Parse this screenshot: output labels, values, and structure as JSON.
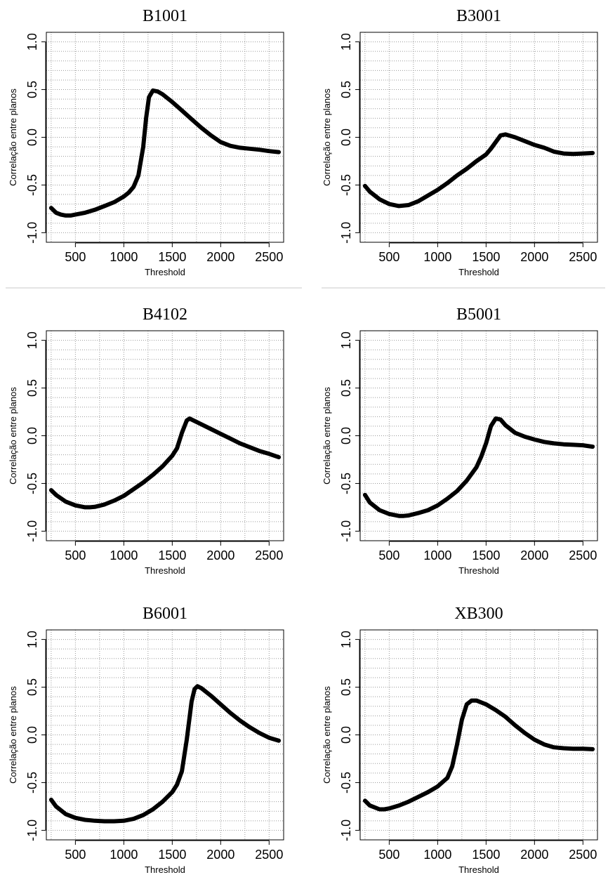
{
  "chart_data": [
    {
      "type": "line",
      "title": "B1001",
      "xlabel": "Threshold",
      "ylabel": "Correlação entre planos",
      "xlim": [
        200,
        2650
      ],
      "ylim": [
        -1.1,
        1.1
      ],
      "xticks": [
        "500",
        "1000",
        "1500",
        "2000",
        "2500"
      ],
      "yticks": [
        "-1.0",
        "-0.5",
        "0.0",
        "0.5",
        "1.0"
      ],
      "grid": true,
      "series": [
        {
          "x": [
            250,
            300,
            350,
            400,
            450,
            500,
            600,
            700,
            800,
            900,
            1000,
            1050,
            1100,
            1150,
            1200,
            1230,
            1260,
            1300,
            1350,
            1400,
            1500,
            1600,
            1700,
            1800,
            1900,
            2000,
            2100,
            2200,
            2300,
            2400,
            2500,
            2600
          ],
          "y": [
            -0.74,
            -0.79,
            -0.81,
            -0.82,
            -0.82,
            -0.81,
            -0.79,
            -0.76,
            -0.72,
            -0.68,
            -0.62,
            -0.58,
            -0.52,
            -0.4,
            -0.1,
            0.2,
            0.42,
            0.49,
            0.48,
            0.45,
            0.37,
            0.28,
            0.19,
            0.1,
            0.02,
            -0.05,
            -0.09,
            -0.11,
            -0.12,
            -0.13,
            -0.145,
            -0.155
          ]
        }
      ]
    },
    {
      "type": "line",
      "title": "B3001",
      "xlabel": "Threshold",
      "ylabel": "Correlação entre planos",
      "xlim": [
        200,
        2650
      ],
      "ylim": [
        -1.1,
        1.1
      ],
      "xticks": [
        "500",
        "1000",
        "1500",
        "2000",
        "2500"
      ],
      "yticks": [
        "-1.0",
        "-0.5",
        "0.0",
        "0.5",
        "1.0"
      ],
      "grid": true,
      "series": [
        {
          "x": [
            250,
            300,
            400,
            500,
            600,
            700,
            800,
            900,
            1000,
            1100,
            1200,
            1300,
            1400,
            1500,
            1550,
            1600,
            1650,
            1700,
            1800,
            1900,
            2000,
            2100,
            2200,
            2300,
            2400,
            2500,
            2600
          ],
          "y": [
            -0.51,
            -0.57,
            -0.65,
            -0.7,
            -0.72,
            -0.71,
            -0.67,
            -0.61,
            -0.55,
            -0.48,
            -0.4,
            -0.33,
            -0.25,
            -0.18,
            -0.12,
            -0.05,
            0.02,
            0.03,
            0.0,
            -0.04,
            -0.08,
            -0.11,
            -0.15,
            -0.17,
            -0.175,
            -0.17,
            -0.165
          ]
        }
      ]
    },
    {
      "type": "line",
      "title": "B4102",
      "xlabel": "Threshold",
      "ylabel": "Correlação entre planos",
      "xlim": [
        200,
        2650
      ],
      "ylim": [
        -1.1,
        1.1
      ],
      "xticks": [
        "500",
        "1000",
        "1500",
        "2000",
        "2500"
      ],
      "yticks": [
        "-1.0",
        "-0.5",
        "0.0",
        "0.5",
        "1.0"
      ],
      "grid": true,
      "series": [
        {
          "x": [
            250,
            300,
            400,
            500,
            600,
            650,
            700,
            800,
            900,
            1000,
            1100,
            1200,
            1300,
            1400,
            1500,
            1550,
            1600,
            1650,
            1680,
            1700,
            1800,
            1900,
            2000,
            2100,
            2200,
            2300,
            2400,
            2500,
            2600
          ],
          "y": [
            -0.57,
            -0.62,
            -0.69,
            -0.73,
            -0.75,
            -0.75,
            -0.745,
            -0.72,
            -0.68,
            -0.63,
            -0.56,
            -0.49,
            -0.41,
            -0.32,
            -0.21,
            -0.13,
            0.03,
            0.16,
            0.18,
            0.17,
            0.12,
            0.07,
            0.02,
            -0.03,
            -0.08,
            -0.12,
            -0.16,
            -0.19,
            -0.225
          ]
        }
      ]
    },
    {
      "type": "line",
      "title": "B5001",
      "xlabel": "Threshold",
      "ylabel": "Correlação entre planos",
      "xlim": [
        200,
        2650
      ],
      "ylim": [
        -1.1,
        1.1
      ],
      "xticks": [
        "500",
        "1000",
        "1500",
        "2000",
        "2500"
      ],
      "yticks": [
        "-1.0",
        "-0.5",
        "0.0",
        "0.5",
        "1.0"
      ],
      "grid": true,
      "series": [
        {
          "x": [
            250,
            300,
            400,
            500,
            600,
            650,
            700,
            800,
            900,
            1000,
            1100,
            1200,
            1300,
            1400,
            1450,
            1500,
            1550,
            1600,
            1650,
            1700,
            1800,
            1900,
            2000,
            2100,
            2200,
            2300,
            2400,
            2500,
            2600
          ],
          "y": [
            -0.62,
            -0.7,
            -0.78,
            -0.82,
            -0.84,
            -0.84,
            -0.835,
            -0.81,
            -0.78,
            -0.73,
            -0.66,
            -0.58,
            -0.47,
            -0.33,
            -0.22,
            -0.08,
            0.1,
            0.18,
            0.17,
            0.11,
            0.03,
            -0.01,
            -0.04,
            -0.065,
            -0.08,
            -0.09,
            -0.095,
            -0.1,
            -0.115
          ]
        }
      ]
    },
    {
      "type": "line",
      "title": "B6001",
      "xlabel": "Threshold",
      "ylabel": "Correlação entre planos",
      "xlim": [
        200,
        2650
      ],
      "ylim": [
        -1.1,
        1.1
      ],
      "xticks": [
        "500",
        "1000",
        "1500",
        "2000",
        "2500"
      ],
      "yticks": [
        "-1.0",
        "-0.5",
        "0.0",
        "0.5",
        "1.0"
      ],
      "grid": true,
      "series": [
        {
          "x": [
            250,
            300,
            400,
            500,
            600,
            700,
            800,
            900,
            1000,
            1100,
            1200,
            1300,
            1400,
            1500,
            1550,
            1600,
            1650,
            1700,
            1730,
            1760,
            1800,
            1900,
            2000,
            2100,
            2200,
            2300,
            2400,
            2500,
            2600
          ],
          "y": [
            -0.68,
            -0.75,
            -0.83,
            -0.87,
            -0.89,
            -0.9,
            -0.905,
            -0.905,
            -0.9,
            -0.88,
            -0.84,
            -0.78,
            -0.7,
            -0.6,
            -0.52,
            -0.38,
            -0.05,
            0.35,
            0.48,
            0.51,
            0.49,
            0.41,
            0.32,
            0.23,
            0.15,
            0.08,
            0.02,
            -0.03,
            -0.06
          ]
        }
      ]
    },
    {
      "type": "line",
      "title": "XB300",
      "xlabel": "Threshold",
      "ylabel": "Correlação entre planos",
      "xlim": [
        200,
        2650
      ],
      "ylim": [
        -1.1,
        1.1
      ],
      "xticks": [
        "500",
        "1000",
        "1500",
        "2000",
        "2500"
      ],
      "yticks": [
        "-1.0",
        "-0.5",
        "0.0",
        "0.5",
        "1.0"
      ],
      "grid": true,
      "series": [
        {
          "x": [
            250,
            300,
            400,
            450,
            500,
            600,
            700,
            800,
            900,
            1000,
            1100,
            1150,
            1200,
            1250,
            1300,
            1350,
            1400,
            1500,
            1600,
            1700,
            1800,
            1900,
            2000,
            2100,
            2200,
            2300,
            2400,
            2500,
            2600
          ],
          "y": [
            -0.69,
            -0.74,
            -0.78,
            -0.78,
            -0.77,
            -0.74,
            -0.7,
            -0.65,
            -0.6,
            -0.54,
            -0.45,
            -0.33,
            -0.1,
            0.16,
            0.32,
            0.36,
            0.36,
            0.32,
            0.26,
            0.19,
            0.1,
            0.02,
            -0.05,
            -0.1,
            -0.13,
            -0.14,
            -0.145,
            -0.145,
            -0.15
          ]
        }
      ]
    }
  ]
}
